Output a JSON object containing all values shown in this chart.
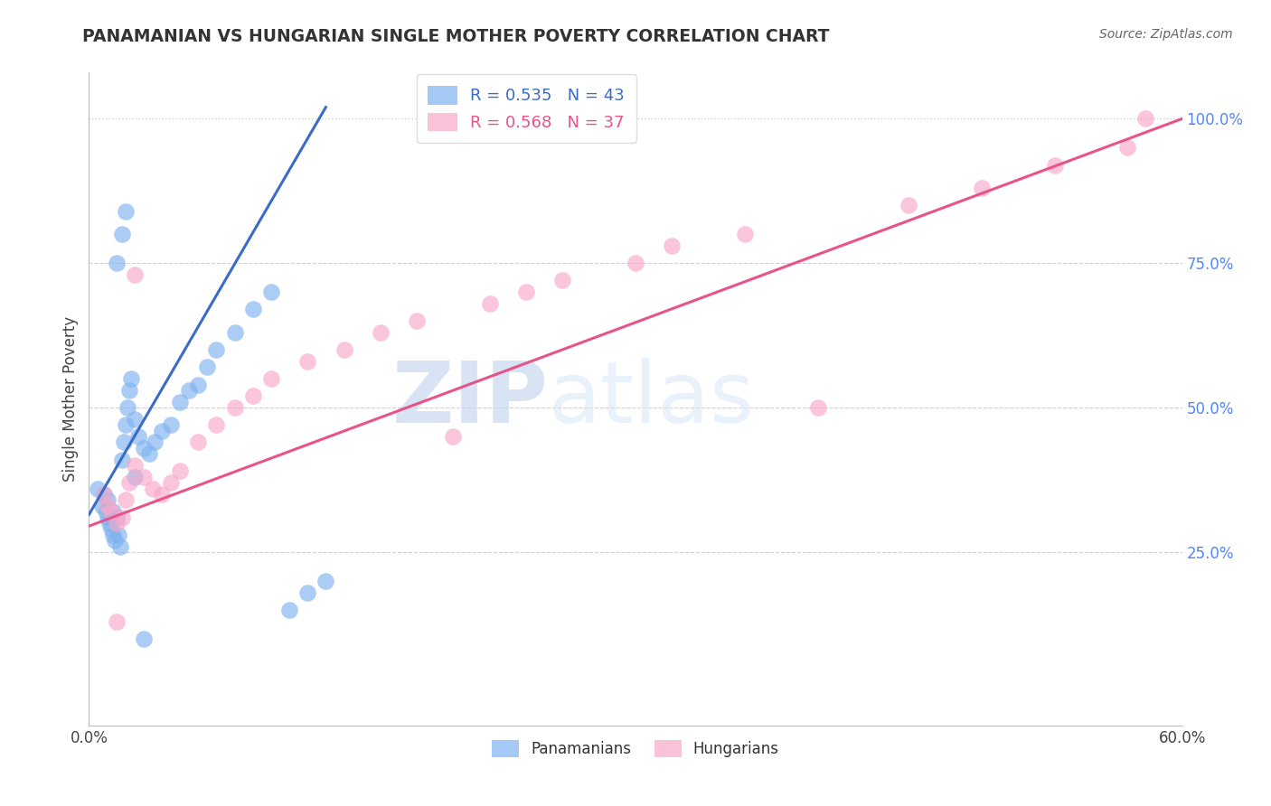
{
  "title": "PANAMANIAN VS HUNGARIAN SINGLE MOTHER POVERTY CORRELATION CHART",
  "source": "Source: ZipAtlas.com",
  "ylabel": "Single Mother Poverty",
  "xlim": [
    0.0,
    0.6
  ],
  "ylim": [
    -0.05,
    1.08
  ],
  "xticks": [
    0.0,
    0.1,
    0.2,
    0.3,
    0.4,
    0.5,
    0.6
  ],
  "xticklabels": [
    "0.0%",
    "",
    "",
    "",
    "",
    "",
    "60.0%"
  ],
  "yticks": [
    0.0,
    0.25,
    0.5,
    0.75,
    1.0
  ],
  "yticklabels": [
    "",
    "25.0%",
    "50.0%",
    "75.0%",
    "100.0%"
  ],
  "blue_color": "#7EB3F0",
  "pink_color": "#F9A8C9",
  "blue_line_color": "#3A6BC9",
  "pink_line_color": "#E8538A",
  "blue_R": 0.535,
  "blue_N": 43,
  "pink_R": 0.568,
  "pink_N": 37,
  "blue_x": [
    0.005,
    0.007,
    0.008,
    0.009,
    0.01,
    0.01,
    0.011,
    0.012,
    0.013,
    0.013,
    0.014,
    0.015,
    0.016,
    0.017,
    0.018,
    0.019,
    0.02,
    0.021,
    0.022,
    0.023,
    0.025,
    0.027,
    0.03,
    0.033,
    0.036,
    0.04,
    0.045,
    0.05,
    0.055,
    0.06,
    0.065,
    0.07,
    0.08,
    0.09,
    0.1,
    0.11,
    0.12,
    0.13,
    0.015,
    0.018,
    0.02,
    0.025,
    0.03
  ],
  "blue_y": [
    0.36,
    0.33,
    0.35,
    0.32,
    0.34,
    0.31,
    0.3,
    0.29,
    0.28,
    0.32,
    0.27,
    0.31,
    0.28,
    0.26,
    0.41,
    0.44,
    0.47,
    0.5,
    0.53,
    0.55,
    0.48,
    0.45,
    0.43,
    0.42,
    0.44,
    0.46,
    0.47,
    0.51,
    0.53,
    0.54,
    0.57,
    0.6,
    0.63,
    0.67,
    0.7,
    0.15,
    0.18,
    0.2,
    0.75,
    0.8,
    0.84,
    0.38,
    0.1
  ],
  "pink_x": [
    0.008,
    0.01,
    0.012,
    0.015,
    0.018,
    0.02,
    0.022,
    0.025,
    0.03,
    0.035,
    0.04,
    0.045,
    0.05,
    0.06,
    0.07,
    0.08,
    0.09,
    0.1,
    0.12,
    0.14,
    0.16,
    0.18,
    0.2,
    0.22,
    0.24,
    0.26,
    0.3,
    0.32,
    0.36,
    0.4,
    0.45,
    0.49,
    0.53,
    0.57,
    0.58,
    0.015,
    0.025
  ],
  "pink_y": [
    0.35,
    0.33,
    0.32,
    0.3,
    0.31,
    0.34,
    0.37,
    0.4,
    0.38,
    0.36,
    0.35,
    0.37,
    0.39,
    0.44,
    0.47,
    0.5,
    0.52,
    0.55,
    0.58,
    0.6,
    0.63,
    0.65,
    0.45,
    0.68,
    0.7,
    0.72,
    0.75,
    0.78,
    0.8,
    0.5,
    0.85,
    0.88,
    0.92,
    0.95,
    1.0,
    0.13,
    0.73
  ],
  "blue_line_x": [
    0.0,
    0.13
  ],
  "blue_line_y": [
    0.315,
    1.02
  ],
  "pink_line_x": [
    0.0,
    0.6
  ],
  "pink_line_y": [
    0.295,
    1.0
  ],
  "watermark_zip": "ZIP",
  "watermark_atlas": "atlas",
  "grid_color": "#CCCCCC",
  "grid_style": "--",
  "top_line_style": ":"
}
